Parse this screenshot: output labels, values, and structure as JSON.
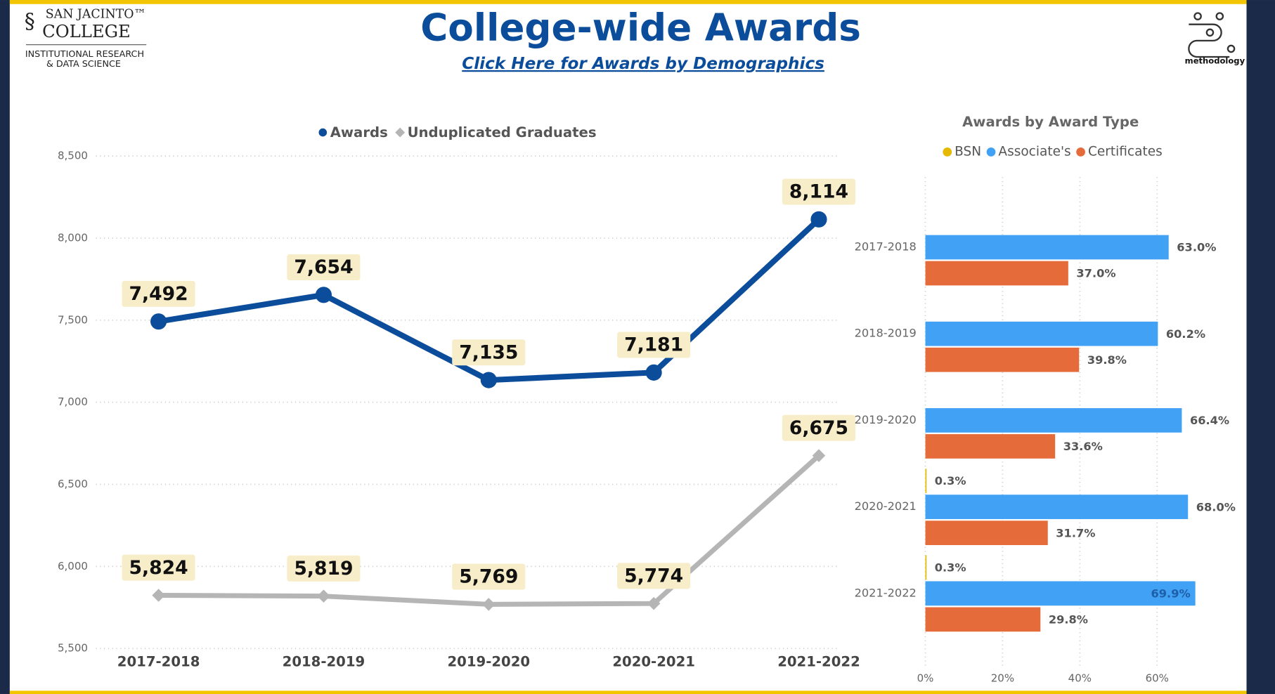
{
  "header": {
    "logo_name": "SAN JACINTO™",
    "logo_college": "COLLEGE",
    "logo_dept_1": "INSTITUTIONAL RESEARCH",
    "logo_dept_2": "& DATA SCIENCE",
    "title": "College-wide Awards",
    "link": "Click Here for Awards by Demographics",
    "methodology": "methodology"
  },
  "chart_data": [
    {
      "type": "line",
      "categories": [
        "2017-2018",
        "2018-2019",
        "2019-2020",
        "2020-2021",
        "2021-2022"
      ],
      "series": [
        {
          "name": "Awards",
          "color": "#0b4d9b",
          "values": [
            7492,
            7654,
            7135,
            7181,
            8114
          ],
          "value_labels": [
            "7,492",
            "7,654",
            "7,135",
            "7,181",
            "8,114"
          ]
        },
        {
          "name": "Unduplicated Graduates",
          "color": "#b5b5b5",
          "values": [
            5824,
            5819,
            5769,
            5774,
            6675
          ],
          "value_labels": [
            "5,824",
            "5,819",
            "5,769",
            "5,774",
            "6,675"
          ]
        }
      ],
      "ylim": [
        5500,
        8500
      ],
      "yticks": [
        {
          "value": 5500,
          "label": "5,500"
        },
        {
          "value": 6000,
          "label": "6,000"
        },
        {
          "value": 6500,
          "label": "6,500"
        },
        {
          "value": 7000,
          "label": "7,000"
        },
        {
          "value": 7500,
          "label": "7,500"
        },
        {
          "value": 8000,
          "label": "8,000"
        },
        {
          "value": 8500,
          "label": "8,500"
        }
      ],
      "grid": true,
      "legend": "top"
    },
    {
      "type": "hbar",
      "title": "Awards by Award Type",
      "categories": [
        "2017-2018",
        "2018-2019",
        "2019-2020",
        "2020-2021",
        "2021-2022"
      ],
      "series": [
        {
          "name": "BSN",
          "color": "#e6b800",
          "values": [
            null,
            null,
            null,
            0.3,
            0.3
          ],
          "value_labels": [
            null,
            null,
            null,
            "0.3%",
            "0.3%"
          ]
        },
        {
          "name": "Associate's",
          "color": "#41a1f5",
          "values": [
            63.0,
            60.2,
            66.4,
            68.0,
            69.9
          ],
          "value_labels": [
            "63.0%",
            "60.2%",
            "66.4%",
            "68.0%",
            "69.9%"
          ]
        },
        {
          "name": "Certificates",
          "color": "#e56b3a",
          "values": [
            37.0,
            39.8,
            33.6,
            31.7,
            29.8
          ],
          "value_labels": [
            "37.0%",
            "39.8%",
            "33.6%",
            "31.7%",
            "29.8%"
          ]
        }
      ],
      "xlim": [
        0,
        80
      ],
      "xticks": [
        {
          "value": 0,
          "label": "0%"
        },
        {
          "value": 20,
          "label": "20%"
        },
        {
          "value": 40,
          "label": "40%"
        },
        {
          "value": 60,
          "label": "60%"
        }
      ],
      "grid": true,
      "legend": "top"
    }
  ]
}
